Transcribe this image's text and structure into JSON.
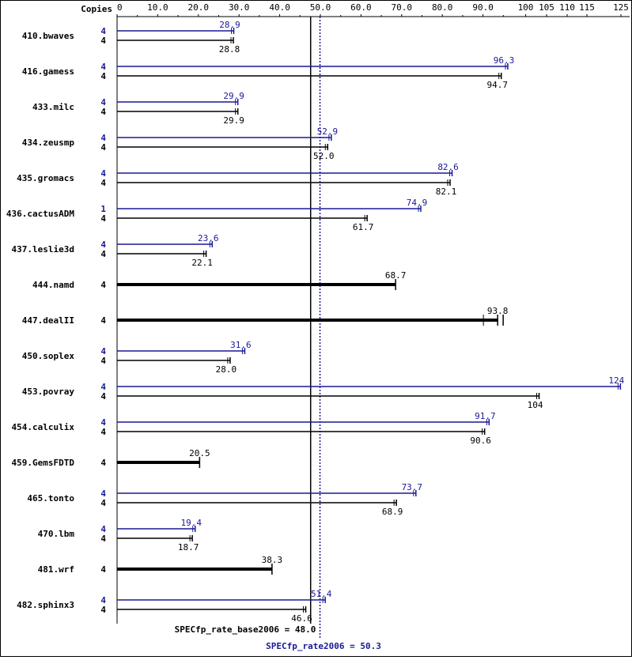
{
  "chart_data": {
    "type": "bar",
    "axis_label": "Copies",
    "x_ticks": [
      "0",
      "10.0",
      "20.0",
      "30.0",
      "40.0",
      "50.0",
      "60.0",
      "70.0",
      "80.0",
      "90.0",
      "100",
      "105",
      "110",
      "115",
      "125"
    ],
    "xlim": [
      0,
      125
    ],
    "colors": {
      "peak": "#191996",
      "base": "#000000"
    },
    "benchmarks": [
      {
        "name": "410.bwaves",
        "peak_copies": "4",
        "peak": 28.9,
        "peak_label": "28.9",
        "base_copies": "4",
        "base": 28.8,
        "base_label": "28.8"
      },
      {
        "name": "416.gamess",
        "peak_copies": "4",
        "peak": 96.3,
        "peak_label": "96.3",
        "base_copies": "4",
        "base": 94.7,
        "base_label": "94.7"
      },
      {
        "name": "433.milc",
        "peak_copies": "4",
        "peak": 29.9,
        "peak_label": "29.9",
        "base_copies": "4",
        "base": 29.9,
        "base_label": "29.9"
      },
      {
        "name": "434.zeusmp",
        "peak_copies": "4",
        "peak": 52.9,
        "peak_label": "52.9",
        "base_copies": "4",
        "base": 52.0,
        "base_label": "52.0"
      },
      {
        "name": "435.gromacs",
        "peak_copies": "4",
        "peak": 82.6,
        "peak_label": "82.6",
        "base_copies": "4",
        "base": 82.1,
        "base_label": "82.1"
      },
      {
        "name": "436.cactusADM",
        "peak_copies": "1",
        "peak": 74.9,
        "peak_label": "74.9",
        "base_copies": "4",
        "base": 61.7,
        "base_label": "61.7"
      },
      {
        "name": "437.leslie3d",
        "peak_copies": "4",
        "peak": 23.6,
        "peak_label": "23.6",
        "base_copies": "4",
        "base": 22.1,
        "base_label": "22.1"
      },
      {
        "name": "444.namd",
        "base_copies": "4",
        "base": 68.7,
        "base_label": "68.7"
      },
      {
        "name": "447.dealII",
        "base_copies": "4",
        "base": 93.8,
        "base_label": "93.8"
      },
      {
        "name": "450.soplex",
        "peak_copies": "4",
        "peak": 31.6,
        "peak_label": "31.6",
        "base_copies": "4",
        "base": 28.0,
        "base_label": "28.0"
      },
      {
        "name": "453.povray",
        "peak_copies": "4",
        "peak": 124,
        "peak_label": "124",
        "base_copies": "4",
        "base": 104,
        "base_label": "104"
      },
      {
        "name": "454.calculix",
        "peak_copies": "4",
        "peak": 91.7,
        "peak_label": "91.7",
        "base_copies": "4",
        "base": 90.6,
        "base_label": "90.6"
      },
      {
        "name": "459.GemsFDTD",
        "base_copies": "4",
        "base": 20.5,
        "base_label": "20.5"
      },
      {
        "name": "465.tonto",
        "peak_copies": "4",
        "peak": 73.7,
        "peak_label": "73.7",
        "base_copies": "4",
        "base": 68.9,
        "base_label": "68.9"
      },
      {
        "name": "470.lbm",
        "peak_copies": "4",
        "peak": 19.4,
        "peak_label": "19.4",
        "base_copies": "4",
        "base": 18.7,
        "base_label": "18.7"
      },
      {
        "name": "481.wrf",
        "base_copies": "4",
        "base": 38.3,
        "base_label": "38.3"
      },
      {
        "name": "482.sphinx3",
        "peak_copies": "4",
        "peak": 51.4,
        "peak_label": "51.4",
        "base_copies": "4",
        "base": 46.6,
        "base_label": "46.6"
      }
    ],
    "summary": {
      "base_label": "SPECfp_rate_base2006 = 48.0",
      "base_value": 48.0,
      "peak_label": "SPECfp_rate2006 = 50.3",
      "peak_value": 50.3
    }
  }
}
